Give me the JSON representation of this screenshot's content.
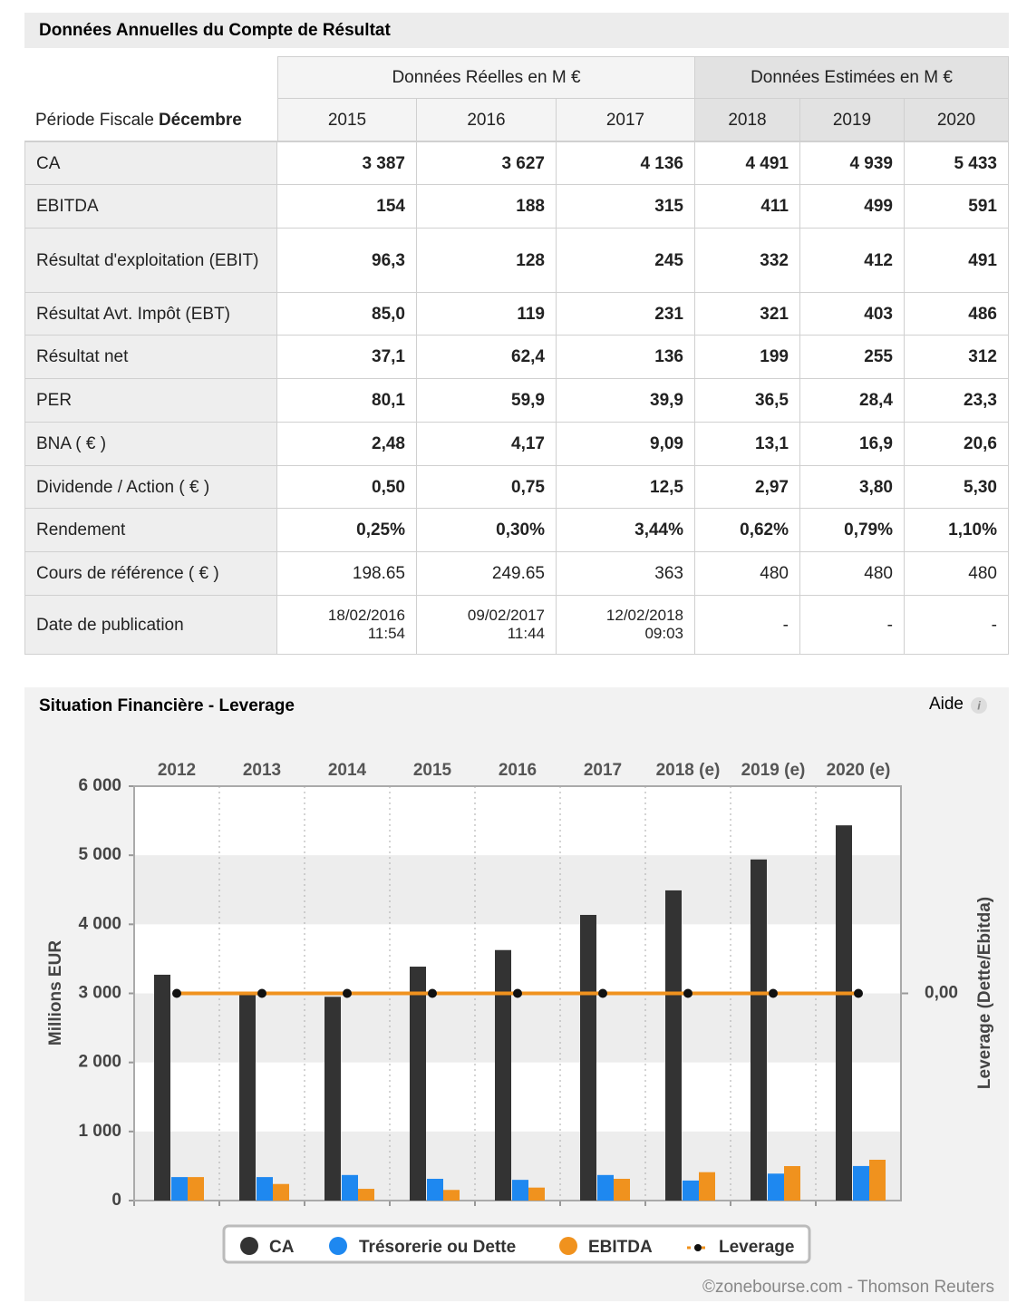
{
  "table": {
    "title": "Données Annuelles du Compte de Résultat",
    "groups": [
      "Données Réelles en M €",
      "Données Estimées en M €"
    ],
    "period_label": "Période Fiscale",
    "period_value": "Décembre",
    "years": [
      "2015",
      "2016",
      "2017",
      "2018",
      "2019",
      "2020"
    ],
    "rows": [
      {
        "label": "CA",
        "bold": true,
        "cells": [
          "3 387",
          "3 627",
          "4 136",
          "4 491",
          "4 939",
          "5 433"
        ]
      },
      {
        "label": "EBITDA",
        "bold": true,
        "cells": [
          "154",
          "188",
          "315",
          "411",
          "499",
          "591"
        ]
      },
      {
        "label": "Résultat d'exploitation (EBIT)",
        "bold": true,
        "cells": [
          "96,3",
          "128",
          "245",
          "332",
          "412",
          "491"
        ]
      },
      {
        "label": "Résultat Avt. Impôt (EBT)",
        "bold": true,
        "cells": [
          "85,0",
          "119",
          "231",
          "321",
          "403",
          "486"
        ]
      },
      {
        "label": "Résultat net",
        "bold": true,
        "cells": [
          "37,1",
          "62,4",
          "136",
          "199",
          "255",
          "312"
        ]
      },
      {
        "label": "PER",
        "bold": true,
        "cells": [
          "80,1",
          "59,9",
          "39,9",
          "36,5",
          "28,4",
          "23,3"
        ]
      },
      {
        "label": "BNA ( € )",
        "bold": true,
        "cells": [
          "2,48",
          "4,17",
          "9,09",
          "13,1",
          "16,9",
          "20,6"
        ]
      },
      {
        "label": "Dividende / Action ( € )",
        "bold": true,
        "cells": [
          "0,50",
          "0,75",
          "12,5",
          "2,97",
          "3,80",
          "5,30"
        ]
      },
      {
        "label": "Rendement",
        "bold": true,
        "cells": [
          "0,25%",
          "0,30%",
          "3,44%",
          "0,62%",
          "0,79%",
          "1,10%"
        ]
      },
      {
        "label": "Cours de référence ( € )",
        "bold": false,
        "cells": [
          "198.65",
          "249.65",
          "363",
          "480",
          "480",
          "480"
        ]
      },
      {
        "label": "Date de publication",
        "bold": false,
        "cells": [
          "18/02/2016\n11:54",
          "09/02/2017\n11:44",
          "12/02/2018\n09:03",
          "-",
          "-",
          "-"
        ]
      }
    ]
  },
  "chart_data": {
    "type": "bar",
    "title": "Situation Financière - Leverage",
    "help": "Aide",
    "ylabel": "Millions EUR",
    "y2label": "Leverage (Dette/Ebitda)",
    "source": "©zonebourse.com - Thomson Reuters",
    "categories": [
      "2012",
      "2013",
      "2014",
      "2015",
      "2016",
      "2017",
      "2018 (e)",
      "2019 (e)",
      "2020 (e)"
    ],
    "series": [
      {
        "name": "CA",
        "color": "#333333",
        "values": [
          3270,
          2980,
          2950,
          3387,
          3627,
          4136,
          4491,
          4939,
          5433
        ]
      },
      {
        "name": "Trésorerie ou Dette",
        "color": "#1e88f0",
        "values": [
          340,
          340,
          370,
          315,
          300,
          370,
          290,
          390,
          500
        ]
      },
      {
        "name": "EBITDA",
        "color": "#f0921e",
        "values": [
          340,
          240,
          170,
          154,
          188,
          315,
          411,
          499,
          591
        ]
      },
      {
        "name": "Leverage",
        "color": "#f0921e",
        "type": "line",
        "axis": "y2",
        "values": [
          0,
          0,
          0,
          0,
          0,
          0,
          0,
          0,
          0
        ]
      }
    ],
    "ylim": [
      0,
      6000
    ],
    "yticks": [
      0,
      {
        "value": 1000,
        "label": "1 000"
      },
      {
        "value": 2000,
        "label": "2 000"
      },
      {
        "value": 3000,
        "label": "3 000"
      },
      {
        "value": 4000,
        "label": "4 000"
      },
      {
        "value": 5000,
        "label": "5 000"
      },
      {
        "value": 6000,
        "label": "6 000"
      }
    ],
    "y2lim": [
      -1,
      1
    ],
    "y2ticks": [
      {
        "value": 0,
        "label": "0,00"
      }
    ]
  }
}
